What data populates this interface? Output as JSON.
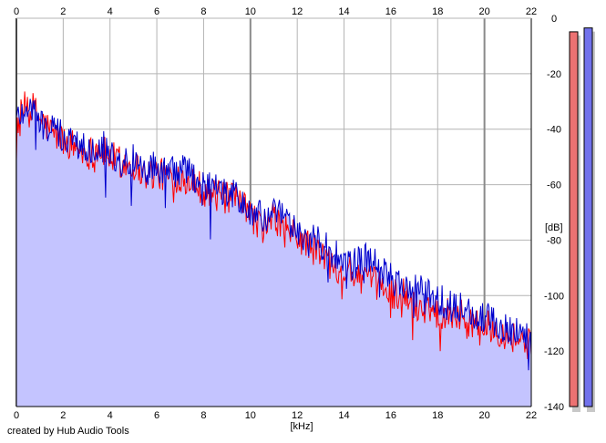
{
  "footer": {
    "credit": "created by Hub Audio Tools"
  },
  "chart_data": {
    "type": "area",
    "xlabel": "[kHz]",
    "ylabel": "[dB]",
    "xlim": [
      0,
      22
    ],
    "ylim": [
      -140,
      0
    ],
    "x_ticks": [
      0,
      2,
      4,
      6,
      8,
      10,
      12,
      14,
      16,
      18,
      20,
      22
    ],
    "y_ticks": [
      0,
      -20,
      -40,
      -60,
      -80,
      -100,
      -120,
      -140
    ],
    "grid": true,
    "colors": {
      "background": "#ffffff",
      "fill": "#c4c4ff",
      "grid": "#b4b4b4",
      "grid_major": "#8a8a8a",
      "axis": "#000000",
      "series_red": "#ff0000",
      "series_blue": "#0000cc",
      "meter_left": "#ec7272",
      "meter_right": "#7272ec",
      "meter_shadow": "#c8c8c8"
    },
    "series": [
      {
        "x": [
          0,
          0.5,
          1,
          1.5,
          2,
          2.5,
          3,
          3.5,
          4,
          4.5,
          5,
          5.5,
          6,
          6.5,
          7,
          7.5,
          8,
          8.5,
          9,
          9.5,
          10,
          10.5,
          11,
          11.5,
          12,
          12.5,
          13,
          13.5,
          14,
          14.5,
          15,
          15.5,
          16,
          16.5,
          17,
          17.5,
          18,
          18.5,
          19,
          19.5,
          20,
          20.5,
          21,
          21.5,
          22
        ],
        "values": [
          -38,
          -30,
          -36,
          -41,
          -44,
          -46,
          -49,
          -47,
          -50,
          -52,
          -53,
          -56,
          -56,
          -57,
          -57,
          -58,
          -62,
          -64,
          -65,
          -66,
          -71,
          -75,
          -72,
          -76,
          -79,
          -82,
          -85,
          -88,
          -91,
          -92,
          -95,
          -96,
          -99,
          -99,
          -104,
          -104,
          -106,
          -106,
          -107,
          -110,
          -111,
          -112,
          -114,
          -116,
          -118
        ]
      },
      {
        "x": [
          0,
          0.5,
          1,
          1.5,
          2,
          2.5,
          3,
          3.5,
          4,
          4.5,
          5,
          5.5,
          6,
          6.5,
          7,
          7.5,
          8,
          8.5,
          9,
          9.5,
          10,
          10.5,
          11,
          11.5,
          12,
          12.5,
          13,
          13.5,
          14,
          14.5,
          15,
          15.5,
          16,
          16.5,
          17,
          17.5,
          18,
          18.5,
          19,
          19.5,
          20,
          20.5,
          21,
          21.5,
          22
        ],
        "values": [
          -36,
          -31,
          -38,
          -40,
          -43,
          -45,
          -47,
          -45,
          -48,
          -52,
          -51,
          -55,
          -53,
          -56,
          -55,
          -56,
          -61,
          -62,
          -63,
          -65,
          -70,
          -72,
          -70,
          -73,
          -77,
          -80,
          -81,
          -85,
          -88,
          -89,
          -86,
          -90,
          -94,
          -96,
          -98,
          -99,
          -101,
          -104,
          -104,
          -107,
          -108,
          -110,
          -112,
          -113,
          -116
        ]
      }
    ],
    "meters": [
      {
        "channel": "left",
        "level": 0.965
      },
      {
        "channel": "right",
        "level": 0.975
      }
    ]
  }
}
